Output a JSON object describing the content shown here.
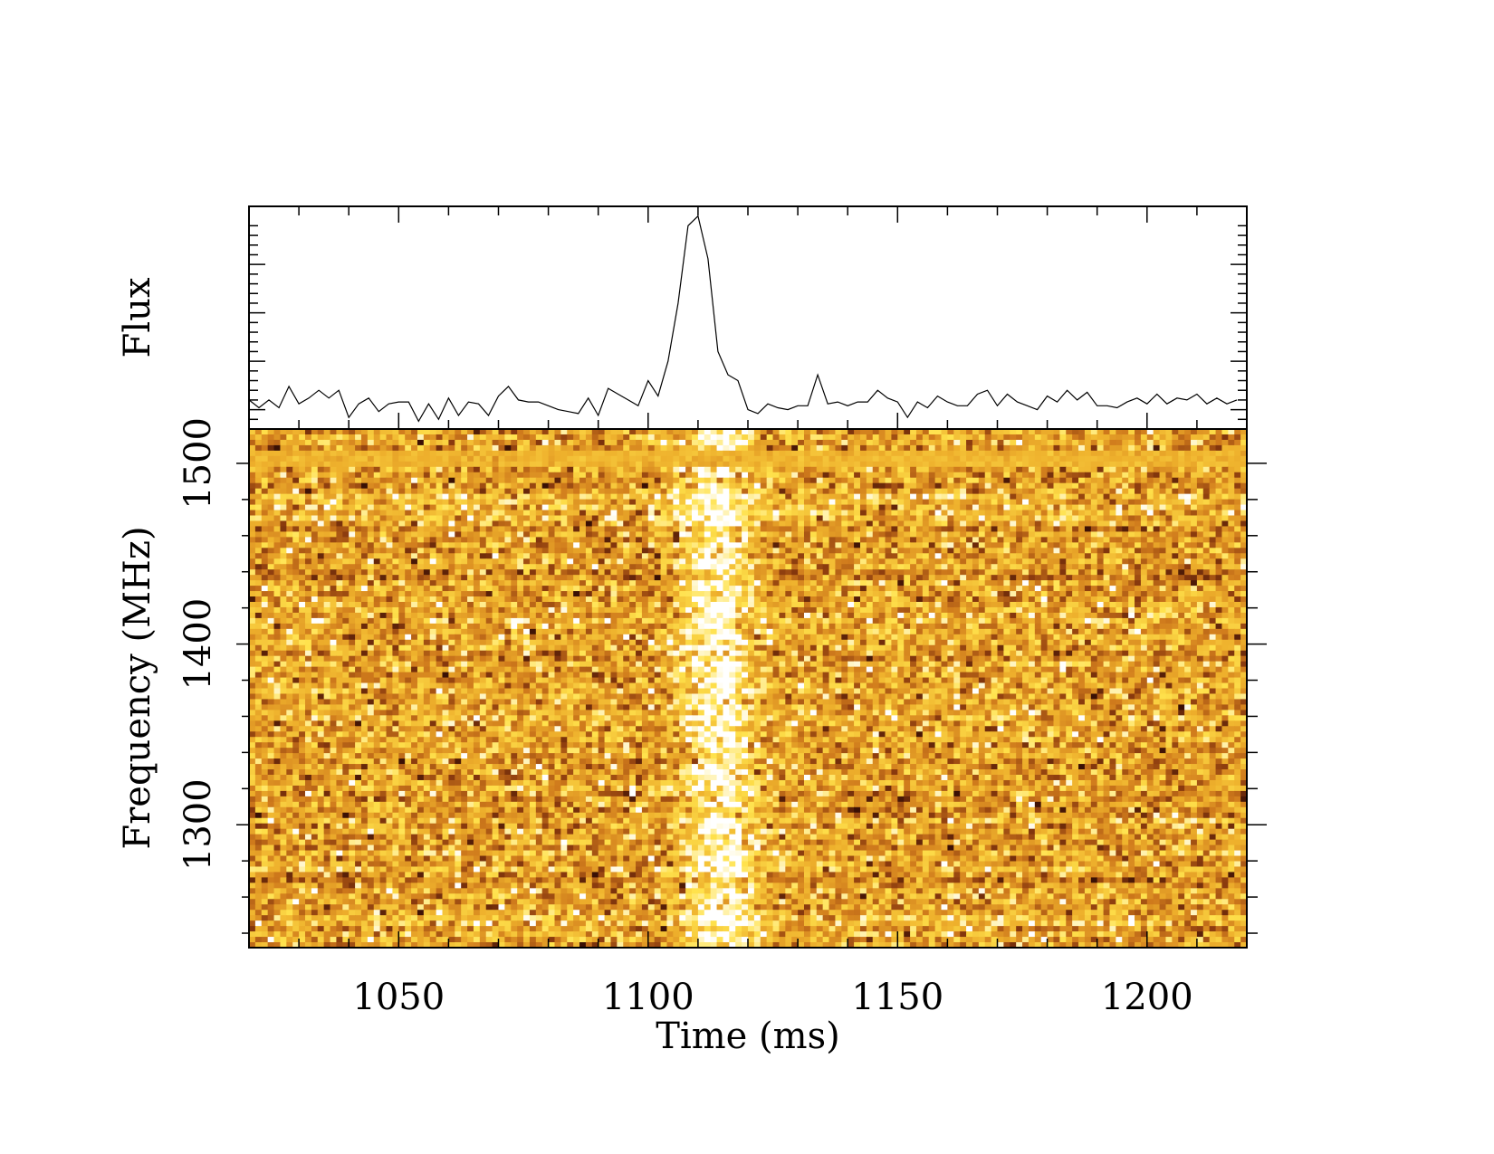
{
  "chart_data": [
    {
      "type": "line",
      "panel": "flux-profile",
      "ylabel": "Flux",
      "xlim": [
        1020,
        1220
      ],
      "x_start": 1020,
      "x_step": 2,
      "values": [
        0.05,
        0.01,
        0.05,
        0.01,
        0.12,
        0.03,
        0.06,
        0.1,
        0.06,
        0.1,
        -0.04,
        0.03,
        0.06,
        -0.01,
        0.03,
        0.04,
        0.04,
        -0.06,
        0.03,
        -0.05,
        0.06,
        -0.03,
        0.04,
        0.03,
        -0.03,
        0.07,
        0.12,
        0.05,
        0.04,
        0.04,
        0.02,
        0.0,
        -0.01,
        -0.02,
        0.06,
        -0.03,
        0.11,
        0.08,
        0.05,
        0.02,
        0.15,
        0.07,
        0.25,
        0.55,
        0.95,
        1.0,
        0.78,
        0.3,
        0.18,
        0.15,
        0.0,
        -0.02,
        0.03,
        0.01,
        0.0,
        0.02,
        0.02,
        0.18,
        0.03,
        0.04,
        0.02,
        0.04,
        0.04,
        0.1,
        0.06,
        0.04,
        -0.04,
        0.04,
        0.01,
        0.07,
        0.04,
        0.02,
        0.02,
        0.08,
        0.1,
        0.02,
        0.08,
        0.04,
        0.02,
        0.0,
        0.07,
        0.04,
        0.1,
        0.05,
        0.09,
        0.02,
        0.02,
        0.01,
        0.04,
        0.06,
        0.03,
        0.08,
        0.03,
        0.06,
        0.05,
        0.08,
        0.03,
        0.06,
        0.03,
        0.05
      ],
      "ylim": [
        -0.1,
        1.05
      ],
      "color": "#000000"
    },
    {
      "type": "heatmap",
      "panel": "dynamic-spectrum",
      "xlabel": "Time (ms)",
      "ylabel": "Frequency (MHz)",
      "xlim": [
        1020,
        1220
      ],
      "ylim": [
        1232,
        1519
      ],
      "x_ticks": [
        1050,
        1100,
        1150,
        1200
      ],
      "y_ticks": [
        1300,
        1400,
        1500
      ],
      "colormap": [
        "#3a1005",
        "#8a3a0e",
        "#cf7a1c",
        "#eeb02c",
        "#ffe24c",
        "#ffffff"
      ],
      "n_time_bins": 160,
      "n_freq_channels": 96,
      "pulse_time": 1114,
      "pulse_width": 7,
      "bright_band_frequency": 1503
    }
  ]
}
